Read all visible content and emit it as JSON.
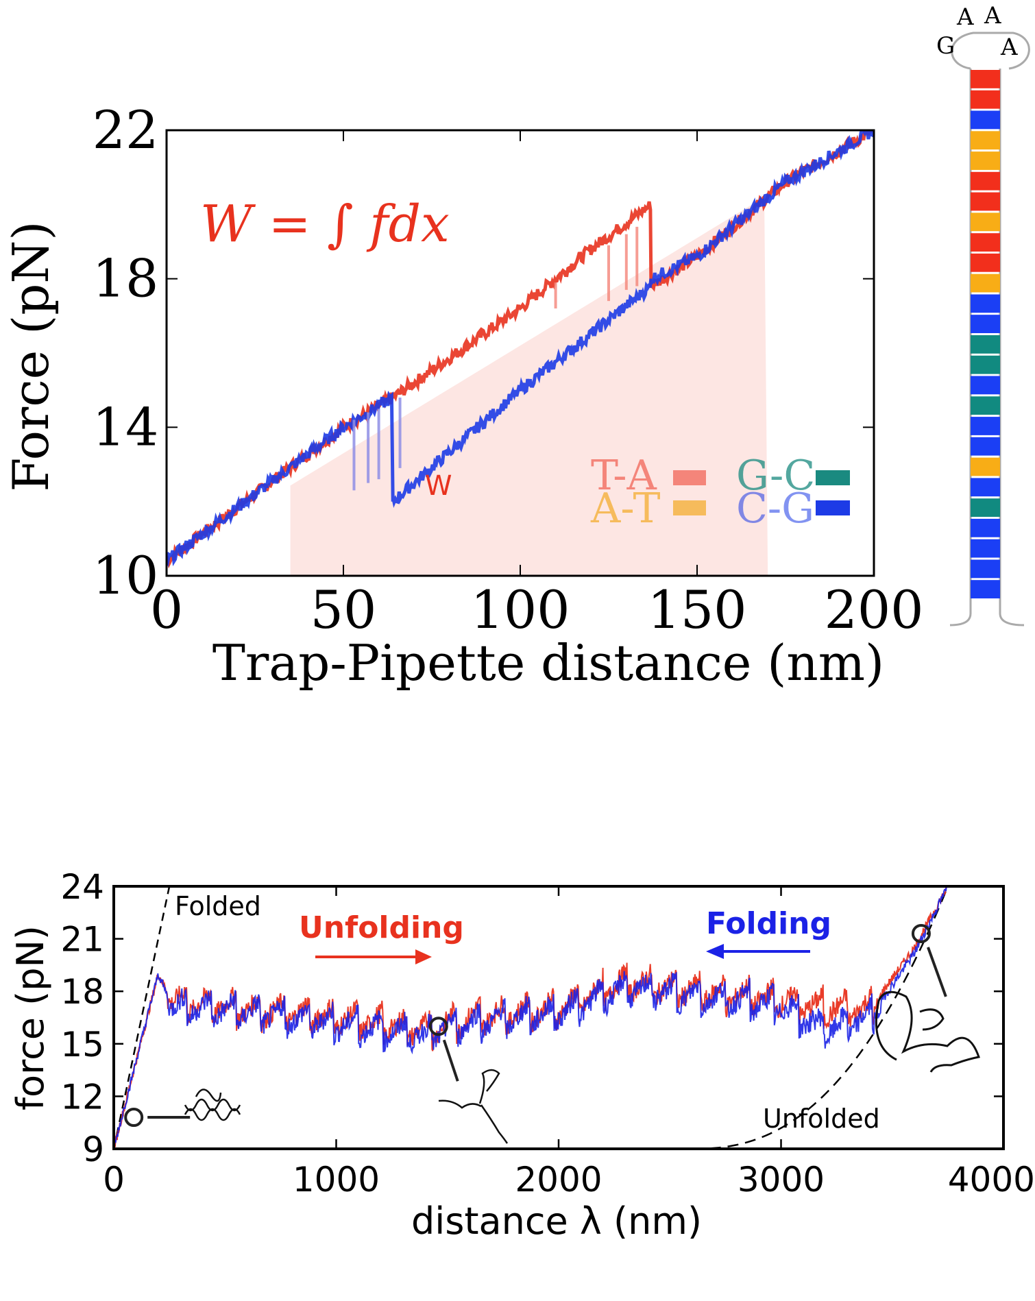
{
  "chart_data": [
    {
      "type": "line",
      "xlabel": "Trap-Pipette distance (nm)",
      "ylabel": "Force (pN)",
      "xlim": [
        0,
        200
      ],
      "ylim": [
        10,
        22
      ],
      "xticks": [
        "0",
        "50",
        "100",
        "150",
        "200"
      ],
      "yticks": [
        "10",
        "14",
        "18",
        "22"
      ],
      "formula": "W = ∫ fdx",
      "shaded_area_label": "W",
      "shaded_area_x_range": [
        35,
        170
      ],
      "legend": {
        "placement": "lower-right",
        "entries": [
          {
            "label": "T-A",
            "color": "#f4857a"
          },
          {
            "label": "G-C",
            "color": "#1a8a80"
          },
          {
            "label": "A-T",
            "color": "#f6bb5c"
          },
          {
            "label": "C-G",
            "color": "#1d3be6"
          }
        ]
      },
      "series": [
        {
          "role": "unfolding",
          "color": "#e8321e",
          "x": [
            0,
            50,
            64,
            100,
            110,
            120,
            137,
            137,
            150,
            175,
            200
          ],
          "y": [
            10.4,
            14.0,
            14.8,
            17.2,
            18.0,
            18.8,
            20.0,
            17.8,
            18.6,
            20.6,
            22.0
          ]
        },
        {
          "role": "refolding",
          "color": "#1d3be6",
          "x": [
            0,
            50,
            64,
            64,
            100,
            137,
            137,
            150,
            175,
            200
          ],
          "y": [
            10.4,
            14.0,
            14.8,
            12.0,
            15.0,
            17.8,
            18.0,
            18.6,
            20.6,
            22.0
          ]
        }
      ]
    },
    {
      "type": "line",
      "xlabel": "distance λ (nm)",
      "ylabel": "force (pN)",
      "xlim": [
        0,
        4000
      ],
      "ylim": [
        9,
        24
      ],
      "xticks": [
        "0",
        "1000",
        "2000",
        "3000",
        "4000"
      ],
      "yticks": [
        "9",
        "12",
        "15",
        "18",
        "21",
        "24"
      ],
      "annotations": {
        "folded": "Folded",
        "unfolded": "Unfolded",
        "unfolding": "Unfolding",
        "folding": "Folding"
      },
      "marked_points": [
        {
          "x": 90,
          "y": 10.8
        },
        {
          "x": 1460,
          "y": 16.0
        },
        {
          "x": 3630,
          "y": 21.3
        }
      ],
      "series": [
        {
          "name": "Unfolding",
          "color": "#e8321e",
          "x": [
            0,
            200,
            260,
            600,
            1000,
            1400,
            1600,
            2000,
            2300,
            2600,
            3000,
            3200,
            3400,
            3600,
            3750
          ],
          "y": [
            9,
            19.0,
            17.5,
            17.0,
            16.5,
            15.8,
            16.5,
            17.0,
            18.5,
            18.0,
            17.5,
            17.0,
            17.0,
            20.5,
            24
          ]
        },
        {
          "name": "Folding",
          "color": "#1b22e6",
          "x": [
            0,
            200,
            260,
            600,
            1000,
            1400,
            1600,
            2000,
            2300,
            2600,
            3000,
            3200,
            3400,
            3600,
            3750
          ],
          "y": [
            9,
            19.0,
            17.2,
            16.8,
            16.2,
            15.5,
            16.2,
            16.8,
            18.2,
            17.8,
            17.2,
            15.8,
            16.5,
            20.2,
            24
          ]
        }
      ]
    }
  ],
  "hairpin": {
    "loop_letters": [
      "A",
      "A",
      "G",
      "A"
    ],
    "pairs": [
      "T-A",
      "T-A",
      "C-G",
      "A-T",
      "A-T",
      "T-A",
      "T-A",
      "A-T",
      "T-A",
      "T-A",
      "A-T",
      "C-G",
      "C-G",
      "G-C",
      "G-C",
      "C-G",
      "G-C",
      "C-G",
      "C-G",
      "A-T",
      "C-G",
      "G-C",
      "C-G",
      "C-G",
      "C-G",
      "C-G"
    ]
  }
}
